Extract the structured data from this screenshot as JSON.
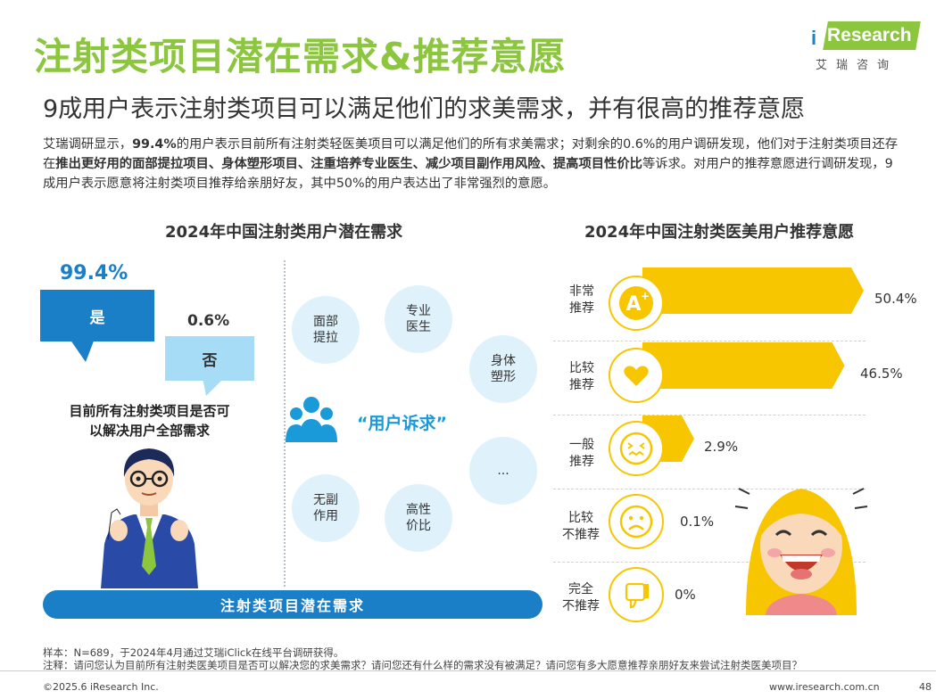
{
  "header": {
    "title": "注射类项目潜在需求&推荐意愿",
    "subtitle": "9成用户表示注射类项目可以满足他们的求美需求，并有很高的推荐意愿",
    "logo_i": "i",
    "logo_brand": "Research",
    "logo_cn": "艾瑞咨询"
  },
  "intro": {
    "p1": "艾瑞调研显示，",
    "b1": "99.4%",
    "p2": "的用户表示目前所有注射类轻医美项目可以满足他们的所有求美需求；对剩余的0.6%的用户调研发现，他们对于注射类项目还存在",
    "b2": "推出更好用的面部提拉项目、身体塑形项目、注重培养专业医生、减少项目副作用风险、提高项目性价比",
    "p3": "等诉求。对用户的推荐意愿进行调研发现，9成用户表示愿意将注射类项目推荐给亲朋好友，其中50%的用户表达出了非常强烈的意愿。"
  },
  "left_panel": {
    "title": "2024年中国注射类用户潜在需求",
    "yes_pct": "99.4%",
    "yes_label": "是",
    "no_pct": "0.6%",
    "no_label": "否",
    "question_line1": "目前所有注射类项目是否可",
    "question_line2": "以解决用户全部需求",
    "needs_label": "“用户诉求”",
    "needs": [
      {
        "l1": "面部",
        "l2": "提拉"
      },
      {
        "l1": "专业",
        "l2": "医生"
      },
      {
        "l1": "身体",
        "l2": "塑形"
      },
      {
        "l1": "无副",
        "l2": "作用"
      },
      {
        "l1": "高性",
        "l2": "价比"
      },
      {
        "l1": "...",
        "l2": ""
      }
    ],
    "bottom_bar": "注射类项目潜在需求"
  },
  "right_panel": {
    "title": "2024年中国注射类医美用户推荐意愿",
    "rows": [
      {
        "l1": "非常",
        "l2": "推荐",
        "value": "50.4%",
        "pct": 50.4,
        "icon": "grade-a-plus-icon"
      },
      {
        "l1": "比较",
        "l2": "推荐",
        "value": "46.5%",
        "pct": 46.5,
        "icon": "heart-icon"
      },
      {
        "l1": "一般",
        "l2": "推荐",
        "value": "2.9%",
        "pct": 2.9,
        "icon": "awkward-face-icon"
      },
      {
        "l1": "比较",
        "l2": "不推荐",
        "value": "0.1%",
        "pct": 0.1,
        "icon": "sad-face-icon"
      },
      {
        "l1": "完全",
        "l2": "不推荐",
        "value": "0%",
        "pct": 0,
        "icon": "thumbs-down-icon"
      }
    ]
  },
  "footer": {
    "sample": "样本：N=689，于2024年4月通过艾瑞iClick在线平台调研获得。",
    "note": "注释：请问您认为目前所有注射类医美项目是否可以解决您的求美需求？请问您还有什么样的需求没有被满足？请问您有多大愿意推荐亲朋好友来尝试注射类医美项目？",
    "copyright": "©2025.6 iResearch Inc.",
    "website": "www.iresearch.com.cn",
    "page": "48"
  },
  "colors": {
    "green": "#8cc63f",
    "blue": "#1a7fc7",
    "light_blue": "#a6dcf5",
    "yellow": "#f7c600",
    "orange": "#f5b800"
  }
}
